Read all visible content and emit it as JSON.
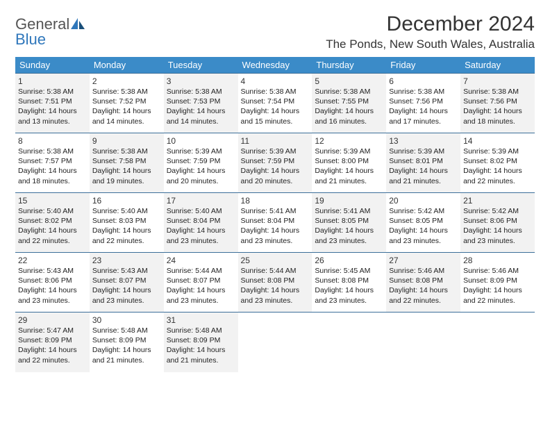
{
  "logo": {
    "text1": "General",
    "text2": "Blue"
  },
  "title": "December 2024",
  "location": "The Ponds, New South Wales, Australia",
  "colors": {
    "header_bg": "#3b8bc8",
    "header_text": "#ffffff",
    "row_border": "#3b6e99",
    "alt_bg": "#f2f2f2",
    "logo_blue": "#2f77bb"
  },
  "weekdays": [
    "Sunday",
    "Monday",
    "Tuesday",
    "Wednesday",
    "Thursday",
    "Friday",
    "Saturday"
  ],
  "days": [
    {
      "n": "1",
      "sunrise": "5:38 AM",
      "sunset": "7:51 PM",
      "daylight": "14 hours and 13 minutes."
    },
    {
      "n": "2",
      "sunrise": "5:38 AM",
      "sunset": "7:52 PM",
      "daylight": "14 hours and 14 minutes."
    },
    {
      "n": "3",
      "sunrise": "5:38 AM",
      "sunset": "7:53 PM",
      "daylight": "14 hours and 14 minutes."
    },
    {
      "n": "4",
      "sunrise": "5:38 AM",
      "sunset": "7:54 PM",
      "daylight": "14 hours and 15 minutes."
    },
    {
      "n": "5",
      "sunrise": "5:38 AM",
      "sunset": "7:55 PM",
      "daylight": "14 hours and 16 minutes."
    },
    {
      "n": "6",
      "sunrise": "5:38 AM",
      "sunset": "7:56 PM",
      "daylight": "14 hours and 17 minutes."
    },
    {
      "n": "7",
      "sunrise": "5:38 AM",
      "sunset": "7:56 PM",
      "daylight": "14 hours and 18 minutes."
    },
    {
      "n": "8",
      "sunrise": "5:38 AM",
      "sunset": "7:57 PM",
      "daylight": "14 hours and 18 minutes."
    },
    {
      "n": "9",
      "sunrise": "5:38 AM",
      "sunset": "7:58 PM",
      "daylight": "14 hours and 19 minutes."
    },
    {
      "n": "10",
      "sunrise": "5:39 AM",
      "sunset": "7:59 PM",
      "daylight": "14 hours and 20 minutes."
    },
    {
      "n": "11",
      "sunrise": "5:39 AM",
      "sunset": "7:59 PM",
      "daylight": "14 hours and 20 minutes."
    },
    {
      "n": "12",
      "sunrise": "5:39 AM",
      "sunset": "8:00 PM",
      "daylight": "14 hours and 21 minutes."
    },
    {
      "n": "13",
      "sunrise": "5:39 AM",
      "sunset": "8:01 PM",
      "daylight": "14 hours and 21 minutes."
    },
    {
      "n": "14",
      "sunrise": "5:39 AM",
      "sunset": "8:02 PM",
      "daylight": "14 hours and 22 minutes."
    },
    {
      "n": "15",
      "sunrise": "5:40 AM",
      "sunset": "8:02 PM",
      "daylight": "14 hours and 22 minutes."
    },
    {
      "n": "16",
      "sunrise": "5:40 AM",
      "sunset": "8:03 PM",
      "daylight": "14 hours and 22 minutes."
    },
    {
      "n": "17",
      "sunrise": "5:40 AM",
      "sunset": "8:04 PM",
      "daylight": "14 hours and 23 minutes."
    },
    {
      "n": "18",
      "sunrise": "5:41 AM",
      "sunset": "8:04 PM",
      "daylight": "14 hours and 23 minutes."
    },
    {
      "n": "19",
      "sunrise": "5:41 AM",
      "sunset": "8:05 PM",
      "daylight": "14 hours and 23 minutes."
    },
    {
      "n": "20",
      "sunrise": "5:42 AM",
      "sunset": "8:05 PM",
      "daylight": "14 hours and 23 minutes."
    },
    {
      "n": "21",
      "sunrise": "5:42 AM",
      "sunset": "8:06 PM",
      "daylight": "14 hours and 23 minutes."
    },
    {
      "n": "22",
      "sunrise": "5:43 AM",
      "sunset": "8:06 PM",
      "daylight": "14 hours and 23 minutes."
    },
    {
      "n": "23",
      "sunrise": "5:43 AM",
      "sunset": "8:07 PM",
      "daylight": "14 hours and 23 minutes."
    },
    {
      "n": "24",
      "sunrise": "5:44 AM",
      "sunset": "8:07 PM",
      "daylight": "14 hours and 23 minutes."
    },
    {
      "n": "25",
      "sunrise": "5:44 AM",
      "sunset": "8:08 PM",
      "daylight": "14 hours and 23 minutes."
    },
    {
      "n": "26",
      "sunrise": "5:45 AM",
      "sunset": "8:08 PM",
      "daylight": "14 hours and 23 minutes."
    },
    {
      "n": "27",
      "sunrise": "5:46 AM",
      "sunset": "8:08 PM",
      "daylight": "14 hours and 22 minutes."
    },
    {
      "n": "28",
      "sunrise": "5:46 AM",
      "sunset": "8:09 PM",
      "daylight": "14 hours and 22 minutes."
    },
    {
      "n": "29",
      "sunrise": "5:47 AM",
      "sunset": "8:09 PM",
      "daylight": "14 hours and 22 minutes."
    },
    {
      "n": "30",
      "sunrise": "5:48 AM",
      "sunset": "8:09 PM",
      "daylight": "14 hours and 21 minutes."
    },
    {
      "n": "31",
      "sunrise": "5:48 AM",
      "sunset": "8:09 PM",
      "daylight": "14 hours and 21 minutes."
    }
  ],
  "labels": {
    "sunrise": "Sunrise:",
    "sunset": "Sunset:",
    "daylight": "Daylight:"
  },
  "layout": {
    "start_weekday": 0,
    "rows": 5,
    "cols": 7
  }
}
